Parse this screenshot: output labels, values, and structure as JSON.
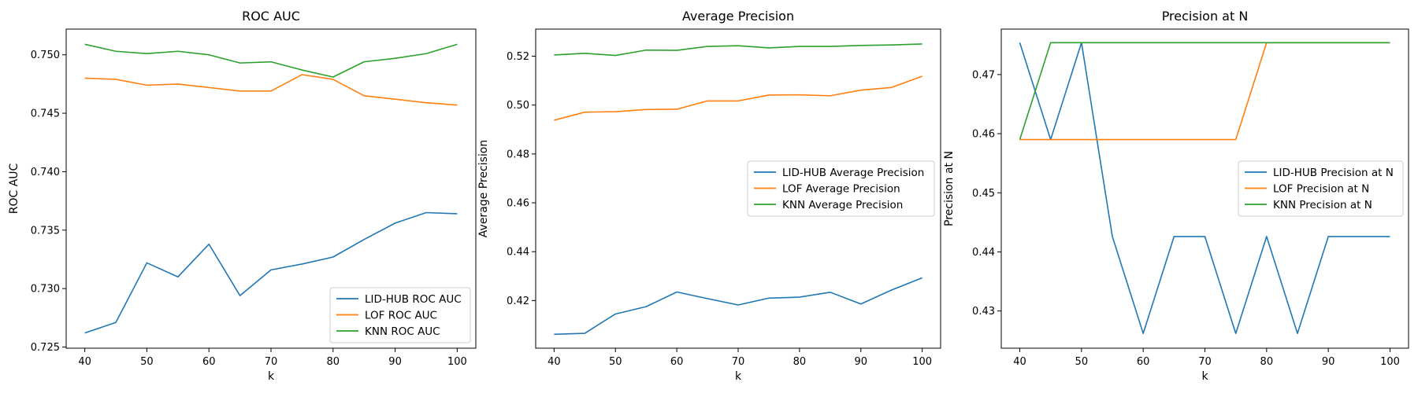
{
  "chart_data": [
    {
      "type": "line",
      "title": "ROC AUC",
      "xlabel": "k",
      "ylabel": "ROC AUC",
      "x": [
        40,
        45,
        50,
        55,
        60,
        65,
        70,
        75,
        80,
        85,
        90,
        95,
        100
      ],
      "xlim": [
        37,
        103
      ],
      "ylim": [
        0.7249,
        0.7522
      ],
      "xticks": [
        "40",
        "50",
        "60",
        "70",
        "80",
        "90",
        "100"
      ],
      "yticks": [
        "0.725",
        "0.730",
        "0.735",
        "0.740",
        "0.745",
        "0.750"
      ],
      "legend_position": "lower-right",
      "series": [
        {
          "name": "LID-HUB ROC AUC",
          "color": "#1f77b4",
          "values": [
            0.7262,
            0.7271,
            0.7322,
            0.731,
            0.7338,
            0.7294,
            0.7316,
            0.7321,
            0.7327,
            0.7342,
            0.7356,
            0.7365,
            0.7364
          ]
        },
        {
          "name": "LOF ROC AUC",
          "color": "#ff7f0e",
          "values": [
            0.748,
            0.7479,
            0.7474,
            0.7475,
            0.7472,
            0.7469,
            0.7469,
            0.7483,
            0.7479,
            0.7465,
            0.7462,
            0.7459,
            0.7457
          ]
        },
        {
          "name": "KNN ROC AUC",
          "color": "#2ca02c",
          "values": [
            0.7509,
            0.7503,
            0.7501,
            0.7503,
            0.75,
            0.7493,
            0.7494,
            0.7487,
            0.7481,
            0.7494,
            0.7497,
            0.7501,
            0.7509
          ]
        }
      ]
    },
    {
      "type": "line",
      "title": "Average Precision",
      "xlabel": "k",
      "ylabel": "Average Precision",
      "x": [
        40,
        45,
        50,
        55,
        60,
        65,
        70,
        75,
        80,
        85,
        90,
        95,
        100
      ],
      "xlim": [
        37,
        103
      ],
      "ylim": [
        0.4005,
        0.5311
      ],
      "xticks": [
        "40",
        "50",
        "60",
        "70",
        "80",
        "90",
        "100"
      ],
      "yticks": [
        "0.42",
        "0.44",
        "0.46",
        "0.48",
        "0.50",
        "0.52"
      ],
      "legend_position": "center-right",
      "series": [
        {
          "name": "LID-HUB Average Precision",
          "color": "#1f77b4",
          "values": [
            0.4062,
            0.4066,
            0.4145,
            0.4175,
            0.4235,
            0.4208,
            0.4182,
            0.421,
            0.4214,
            0.4234,
            0.4186,
            0.4243,
            0.4293
          ]
        },
        {
          "name": "LOF Average Precision",
          "color": "#ff7f0e",
          "values": [
            0.4938,
            0.4971,
            0.4973,
            0.4982,
            0.4983,
            0.5017,
            0.5017,
            0.5041,
            0.5042,
            0.5038,
            0.5061,
            0.5072,
            0.5118
          ]
        },
        {
          "name": "KNN Average Precision",
          "color": "#2ca02c",
          "values": [
            0.5205,
            0.5212,
            0.5203,
            0.5225,
            0.5224,
            0.524,
            0.5243,
            0.5234,
            0.524,
            0.524,
            0.5244,
            0.5246,
            0.525
          ]
        }
      ]
    },
    {
      "type": "line",
      "title": "Precision at N",
      "xlabel": "k",
      "ylabel": "Precision at N",
      "x": [
        40,
        45,
        50,
        55,
        60,
        65,
        70,
        75,
        80,
        85,
        90,
        95,
        100
      ],
      "xlim": [
        37,
        103
      ],
      "ylim": [
        0.4237,
        0.4777
      ],
      "xticks": [
        "40",
        "50",
        "60",
        "70",
        "80",
        "90",
        "100"
      ],
      "yticks": [
        "0.43",
        "0.44",
        "0.45",
        "0.46",
        "0.47"
      ],
      "legend_position": "center-right",
      "series": [
        {
          "name": "LID-HUB Precision at N",
          "color": "#1f77b4",
          "values": [
            0.4754,
            0.459,
            0.4754,
            0.4426,
            0.4262,
            0.4426,
            0.4426,
            0.4262,
            0.4426,
            0.4262,
            0.4426,
            0.4426,
            0.4426
          ]
        },
        {
          "name": "LOF Precision at N",
          "color": "#ff7f0e",
          "values": [
            0.459,
            0.459,
            0.459,
            0.459,
            0.459,
            0.459,
            0.459,
            0.459,
            0.4754,
            0.4754,
            0.4754,
            0.4754,
            0.4754
          ]
        },
        {
          "name": "KNN Precision at N",
          "color": "#2ca02c",
          "values": [
            0.459,
            0.4754,
            0.4754,
            0.4754,
            0.4754,
            0.4754,
            0.4754,
            0.4754,
            0.4754,
            0.4754,
            0.4754,
            0.4754,
            0.4754
          ]
        }
      ]
    }
  ]
}
